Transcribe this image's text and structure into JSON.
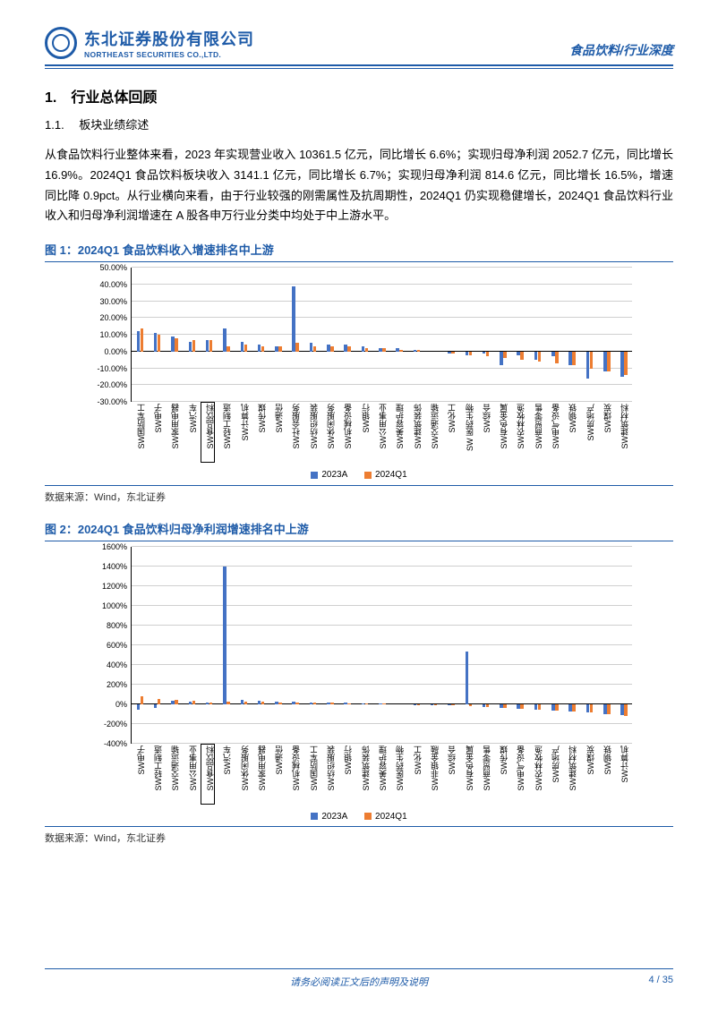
{
  "header": {
    "company_cn": "东北证券股份有限公司",
    "company_en": "NORTHEAST SECURITIES CO.,LTD.",
    "category": "食品饮料/行业深度"
  },
  "section": {
    "h1": "1.　行业总体回顾",
    "h2": "1.1.　 板块业绩综述",
    "body": "从食品饮料行业整体来看，2023 年实现营业收入 10361.5 亿元，同比增长 6.6%；实现归母净利润 2052.7 亿元，同比增长 16.9%。2024Q1 食品饮料板块收入 3141.1 亿元，同比增长 6.7%；实现归母净利润 814.6 亿元，同比增长 16.5%，增速同比降 0.9pct。从行业横向来看，由于行业较强的刚需属性及抗周期性，2024Q1 仍实现稳健增长，2024Q1 食品饮料行业收入和归母净利润增速在 A 股各申万行业分类中均处于中上游水平。"
  },
  "chart1": {
    "title": "图 1：2024Q1 食品饮料收入增速排名中上游",
    "source": "数据来源：Wind，东北证券",
    "type": "bar",
    "colors": {
      "series_a": "#4472c4",
      "series_b": "#ed7d31",
      "grid": "#cfcfcf",
      "axis": "#000000"
    },
    "legend": [
      "2023A",
      "2024Q1"
    ],
    "ylim": [
      -30,
      50
    ],
    "yticks": [
      -30,
      -20,
      -10,
      0,
      10,
      20,
      30,
      40,
      50
    ],
    "ytick_labels": [
      "-30.00%",
      "-20.00%",
      "-10.00%",
      "0.00%",
      "10.00%",
      "20.00%",
      "30.00%",
      "40.00%",
      "50.00%"
    ],
    "categories": [
      "SW国防军工",
      "SW电子",
      "SW家用电器",
      "SW汽车",
      "SW食品饮料",
      "SW轻工制造",
      "SW计算机",
      "SW传媒",
      "SW通信",
      "SW社会服务",
      "SW纺织服装",
      "SW休闲服务",
      "SW机械设备",
      "SW银行",
      "SW公用事业",
      "SW美容护理",
      "SW建筑装饰",
      "SW交通运输",
      "SW化工",
      "SW 医药生物",
      "SW综合",
      "SW有色金属",
      "SW农林牧渔",
      "SW商贸零售",
      "SW电气设备",
      "SW钢铁",
      "SW房地产",
      "SW煤炭",
      "SW建筑材料"
    ],
    "highlight_index": 4,
    "series_a": [
      12,
      11,
      9,
      6,
      6.6,
      14,
      6,
      4,
      3,
      39,
      5,
      4,
      4,
      3,
      2,
      2,
      1,
      0,
      -1,
      -2,
      -1,
      -8,
      -2,
      -5,
      -3,
      -8,
      -16,
      -12,
      -15
    ],
    "series_b": [
      14,
      10,
      8,
      7,
      6.7,
      3,
      4,
      3,
      3,
      5,
      3,
      3,
      3,
      2,
      2,
      1,
      1,
      0,
      -1,
      -2,
      -3,
      -4,
      -5,
      -6,
      -7,
      -8,
      -10,
      -12,
      -14
    ]
  },
  "chart2": {
    "title": "图 2：2024Q1 食品饮料归母净利润增速排名中上游",
    "source": "数据来源：Wind，东北证券",
    "type": "bar",
    "colors": {
      "series_a": "#4472c4",
      "series_b": "#ed7d31",
      "grid": "#cfcfcf",
      "axis": "#000000"
    },
    "legend": [
      "2023A",
      "2024Q1"
    ],
    "ylim": [
      -400,
      1600
    ],
    "yticks": [
      -400,
      -200,
      0,
      200,
      400,
      600,
      800,
      1000,
      1200,
      1400,
      1600
    ],
    "ytick_labels": [
      "-400%",
      "-200%",
      "0%",
      "200%",
      "400%",
      "600%",
      "800%",
      "1000%",
      "1200%",
      "1400%",
      "1600%"
    ],
    "categories": [
      "SW电子",
      "SW轻工制造",
      "SW交通运输",
      "SW公用事业",
      "SW食品饮料",
      "SW汽车",
      "SW休闲服务",
      "SW家用电器",
      "SW通信",
      "SW机械设备",
      "SW国防军工",
      "SW纺织服装",
      "SW银行",
      "SW建筑装饰",
      "SW美容护理",
      "SW医药生物",
      "SW化工",
      "SW非银金融",
      "SW综合",
      "SW有色金属",
      "SW商贸零售",
      "SW传媒",
      "SW电气设备",
      "SW农林牧渔",
      "SW房地产",
      "SW建筑材料",
      "SW煤炭",
      "SW钢铁",
      "SW计算机"
    ],
    "highlight_index": 4,
    "series_a": [
      -60,
      -40,
      30,
      20,
      16.9,
      1400,
      40,
      30,
      25,
      20,
      18,
      15,
      10,
      8,
      5,
      0,
      -5,
      -10,
      -15,
      530,
      -30,
      -40,
      -50,
      -60,
      -70,
      -80,
      -90,
      -100,
      -110
    ],
    "series_b": [
      80,
      50,
      40,
      30,
      16.5,
      25,
      22,
      20,
      18,
      15,
      12,
      10,
      8,
      5,
      2,
      0,
      -5,
      -10,
      -15,
      -20,
      -30,
      -40,
      -50,
      -60,
      -70,
      -80,
      -90,
      -100,
      -120
    ]
  },
  "footer": {
    "disclaimer": "请务必阅读正文后的声明及说明",
    "page": "4 / 35"
  }
}
